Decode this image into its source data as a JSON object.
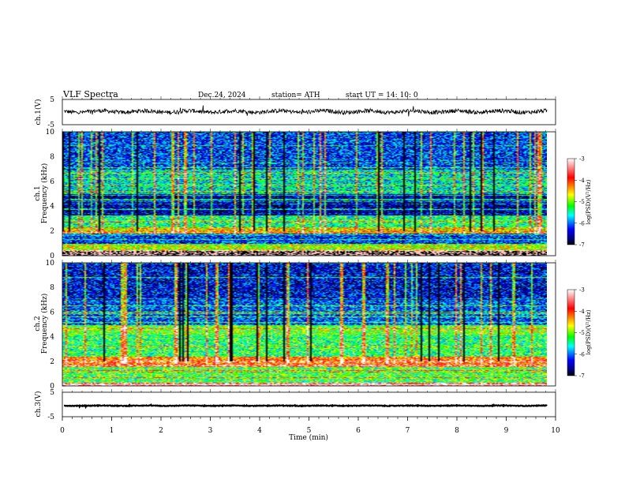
{
  "header": {
    "title": "VLF  Spectra",
    "date": "Dec.24, 2024",
    "station": "station= ATH",
    "start": "start  UT  =   14: 10: 0"
  },
  "panels": {
    "ch1_wave": {
      "ylabel": "ch.1(V)",
      "yticks": [
        "5",
        "-5"
      ]
    },
    "ch1_spec": {
      "ylabel_a": "ch.1",
      "ylabel_b": "Frequency  (kHz)",
      "yticks": [
        "10",
        "8",
        "6",
        "4",
        "2",
        "0"
      ]
    },
    "ch2_spec": {
      "ylabel_a": "ch.2",
      "ylabel_b": "Frequency  (kHz)",
      "yticks": [
        "10",
        "8",
        "6",
        "4",
        "2",
        "0"
      ]
    },
    "ch3_wave": {
      "ylabel": "ch.3(V)",
      "yticks": [
        "5",
        "-5"
      ]
    }
  },
  "xaxis": {
    "label": "Time  (min)",
    "ticks": [
      "0",
      "1",
      "2",
      "3",
      "4",
      "5",
      "6",
      "7",
      "8",
      "9",
      "10"
    ]
  },
  "colorbar": {
    "label": "log(PSD)(V²/Hz)",
    "ticks": [
      "-3",
      "-4",
      "-5",
      "-6",
      "-7"
    ],
    "colors": [
      "#ffffff",
      "#ff0000",
      "#ffff00",
      "#00ff00",
      "#00ffff",
      "#0000ff",
      "#000000"
    ]
  },
  "chart_data": [
    {
      "type": "line",
      "title": "ch.1(V)",
      "xlabel": "Time  (min)",
      "ylabel": "ch.1(V)",
      "xlim": [
        0,
        10
      ],
      "ylim": [
        -5,
        5
      ],
      "data_extent_min": 9.83,
      "baseline_V": 0.2,
      "noise_V": 0.8
    },
    {
      "type": "heatmap",
      "title": "ch.1 Frequency (kHz)",
      "xlabel": "Time  (min)",
      "ylabel": "Frequency  (kHz)",
      "xlim": [
        0,
        10
      ],
      "ylim": [
        0,
        10
      ],
      "zlim": [
        -7,
        -3
      ],
      "zlabel": "log(PSD)(V²/Hz)",
      "bands_khz": [
        {
          "from": 0.0,
          "to": 0.5,
          "logpsd": -3.2
        },
        {
          "from": 0.5,
          "to": 1.0,
          "logpsd": -4.8
        },
        {
          "from": 1.0,
          "to": 1.8,
          "logpsd": -6.2
        },
        {
          "from": 1.8,
          "to": 2.3,
          "logpsd": -4.6
        },
        {
          "from": 2.3,
          "to": 3.3,
          "logpsd": -5.4
        },
        {
          "from": 3.3,
          "to": 5.0,
          "logpsd": -6.6
        },
        {
          "from": 5.0,
          "to": 7.0,
          "logpsd": -5.6
        },
        {
          "from": 7.0,
          "to": 10.0,
          "logpsd": -6.2
        }
      ]
    },
    {
      "type": "heatmap",
      "title": "ch.2 Frequency (kHz)",
      "xlabel": "Time  (min)",
      "ylabel": "Frequency  (kHz)",
      "xlim": [
        0,
        10
      ],
      "ylim": [
        0,
        10
      ],
      "zlim": [
        -7,
        -3
      ],
      "zlabel": "log(PSD)(V²/Hz)",
      "bands_khz": [
        {
          "from": 0.0,
          "to": 0.3,
          "logpsd": -3.4
        },
        {
          "from": 0.3,
          "to": 1.6,
          "logpsd": -5.2
        },
        {
          "from": 1.6,
          "to": 2.4,
          "logpsd": -4.2
        },
        {
          "from": 2.4,
          "to": 4.2,
          "logpsd": -5.3
        },
        {
          "from": 4.2,
          "to": 5.0,
          "logpsd": -5.0
        },
        {
          "from": 5.0,
          "to": 7.0,
          "logpsd": -6.1
        },
        {
          "from": 7.0,
          "to": 10.0,
          "logpsd": -6.4
        }
      ]
    },
    {
      "type": "line",
      "title": "ch.3(V)",
      "xlabel": "Time  (min)",
      "ylabel": "ch.3(V)",
      "xlim": [
        0,
        10
      ],
      "ylim": [
        -5,
        5
      ],
      "data_extent_min": 9.83,
      "baseline_V": -0.5,
      "noise_V": 0.15
    }
  ]
}
